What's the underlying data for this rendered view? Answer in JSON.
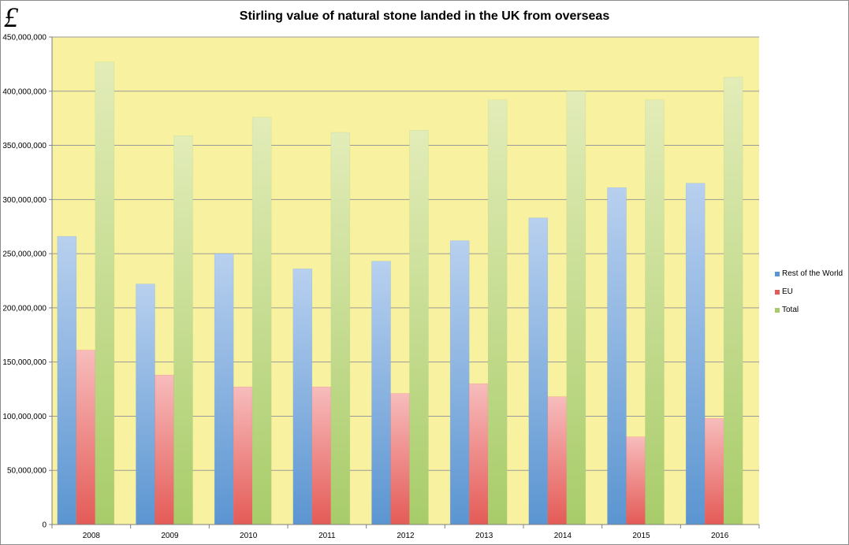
{
  "currency_symbol": "£",
  "colors": {
    "plot_bg": "#f8f2a0",
    "rest": "#5b95d1",
    "eu": "#e45b57",
    "total": "#a8cc6a",
    "grid": "#9a9a9a"
  },
  "chart_data": {
    "type": "bar",
    "title": "Stirling value of natural stone landed in the UK from overseas",
    "xlabel": "",
    "ylabel": "",
    "ylim": [
      0,
      450000000
    ],
    "ytick_step": 50000000,
    "ytick_labels": [
      "0",
      "50,000,000",
      "100,000,000",
      "150,000,000",
      "200,000,000",
      "250,000,000",
      "300,000,000",
      "350,000,000",
      "400,000,000",
      "450,000,000"
    ],
    "categories": [
      "2008",
      "2009",
      "2010",
      "2011",
      "2012",
      "2013",
      "2014",
      "2015",
      "2016"
    ],
    "grid": true,
    "legend_position": "right",
    "series": [
      {
        "name": "Rest of the World",
        "color": "#5b95d1",
        "values": [
          266000000,
          222000000,
          250000000,
          236000000,
          243000000,
          262000000,
          283000000,
          311000000,
          315000000
        ]
      },
      {
        "name": "EU",
        "color": "#e45b57",
        "values": [
          161000000,
          138000000,
          127000000,
          127000000,
          121000000,
          130000000,
          118000000,
          81000000,
          98000000
        ]
      },
      {
        "name": "Total",
        "color": "#a8cc6a",
        "values": [
          427000000,
          359000000,
          376000000,
          362000000,
          364000000,
          392000000,
          400000000,
          392000000,
          413000000
        ]
      }
    ]
  }
}
